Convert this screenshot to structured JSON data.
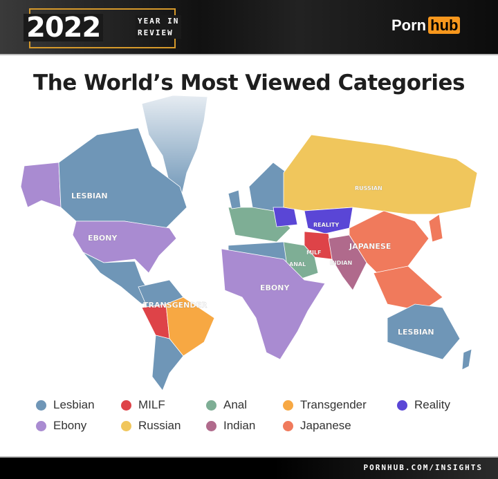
{
  "header": {
    "year": "2022",
    "subtitle_line1": "YEAR IN",
    "subtitle_line2": "REVIEW",
    "logo_part1": "Porn",
    "logo_part2": "hub"
  },
  "title": "The World’s Most Viewed Categories",
  "map_labels": {
    "lesbian_na": "LESBIAN",
    "ebony_us": "EBONY",
    "transgender": "TRANSGENDER",
    "russian": "RUSSIAN",
    "reality": "REALITY",
    "milf": "MILF",
    "anal": "ANAL",
    "indian": "INDIAN",
    "japanese": "JAPANESE",
    "ebony_africa": "EBONY",
    "lesbian_au": "LESBIAN"
  },
  "legend": [
    {
      "label": "Lesbian",
      "color": "#6f96b7"
    },
    {
      "label": "MILF",
      "color": "#de4348"
    },
    {
      "label": "Anal",
      "color": "#7eae95"
    },
    {
      "label": "Transgender",
      "color": "#f7a843"
    },
    {
      "label": "Reality",
      "color": "#5a46d6"
    },
    {
      "label": "Ebony",
      "color": "#a98bd1"
    },
    {
      "label": "Russian",
      "color": "#f0c65c"
    },
    {
      "label": "Indian",
      "color": "#b06a8c"
    },
    {
      "label": "Japanese",
      "color": "#f07a5c"
    }
  ],
  "footer": {
    "url": "PORNHUB.COM/INSIGHTS"
  }
}
